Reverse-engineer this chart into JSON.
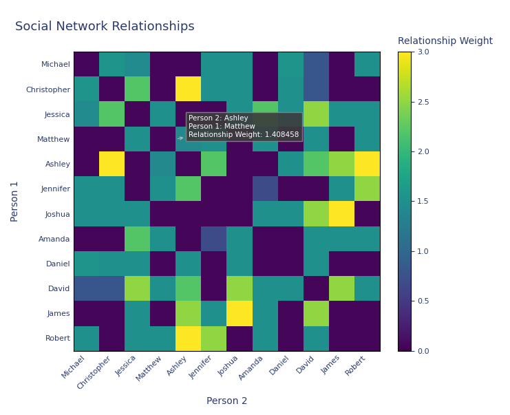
{
  "names": [
    "Michael",
    "Christopher",
    "Jessica",
    "Matthew",
    "Ashley",
    "Jennifer",
    "Joshua",
    "Amanda",
    "Daniel",
    "David",
    "James",
    "Robert"
  ],
  "matrix": [
    [
      0.05,
      1.55,
      1.45,
      0.05,
      0.05,
      1.5,
      1.5,
      0.05,
      1.55,
      0.8,
      0.05,
      1.5
    ],
    [
      1.55,
      0.05,
      2.2,
      0.05,
      3.0,
      1.5,
      1.5,
      0.05,
      1.5,
      0.8,
      0.05,
      0.05
    ],
    [
      1.45,
      2.2,
      0.05,
      1.5,
      0.05,
      0.05,
      1.5,
      2.2,
      1.5,
      2.5,
      1.5,
      1.5
    ],
    [
      0.05,
      0.05,
      1.5,
      0.05,
      1.408458,
      1.5,
      0.05,
      1.5,
      0.05,
      1.5,
      0.05,
      1.5
    ],
    [
      0.05,
      3.0,
      0.05,
      1.408458,
      0.05,
      2.2,
      0.05,
      0.05,
      1.5,
      2.2,
      2.5,
      3.0
    ],
    [
      1.5,
      1.5,
      0.05,
      1.5,
      2.2,
      0.05,
      0.05,
      0.7,
      0.05,
      0.05,
      1.5,
      2.5
    ],
    [
      1.5,
      1.5,
      1.5,
      0.05,
      0.05,
      0.05,
      0.05,
      1.5,
      1.5,
      2.5,
      3.0,
      0.05
    ],
    [
      0.05,
      0.05,
      2.2,
      1.5,
      0.05,
      0.7,
      1.5,
      0.05,
      0.05,
      1.5,
      1.5,
      1.5
    ],
    [
      1.55,
      1.5,
      1.5,
      0.05,
      1.5,
      0.05,
      1.5,
      0.05,
      0.05,
      1.5,
      0.05,
      0.05
    ],
    [
      0.8,
      0.8,
      2.5,
      1.5,
      2.2,
      0.05,
      2.5,
      1.5,
      1.5,
      0.05,
      2.5,
      1.5
    ],
    [
      0.05,
      0.05,
      1.5,
      0.05,
      2.5,
      1.5,
      3.0,
      1.5,
      0.05,
      2.5,
      0.05,
      0.05
    ],
    [
      1.5,
      0.05,
      1.5,
      1.5,
      3.0,
      2.5,
      0.05,
      1.5,
      0.05,
      1.5,
      0.05,
      0.05
    ]
  ],
  "title": "Social Network Relationships",
  "xlabel": "Person 2",
  "ylabel": "Person 1",
  "colorbar_label": "Relationship Weight",
  "cmap": "viridis",
  "vmin": 0,
  "vmax": 3,
  "title_fontsize": 13,
  "axis_label_fontsize": 10,
  "tick_fontsize": 8,
  "colorbar_fontsize": 10,
  "title_color": "#2b3a6b",
  "label_color": "#2b3a6b",
  "tick_color": "#2b3a6b",
  "bg_color": "#ffffff",
  "tooltip_person2": "Ashley",
  "tooltip_person1": "Matthew",
  "tooltip_weight": "1.408458"
}
